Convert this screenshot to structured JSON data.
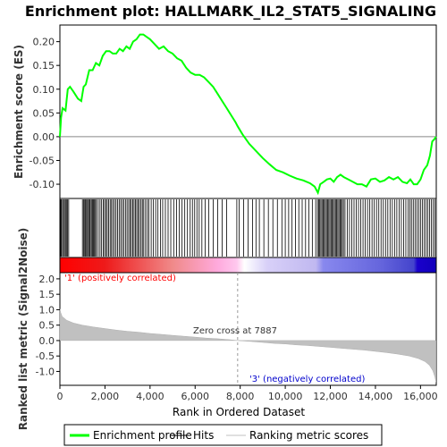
{
  "chart_data": {
    "type": "line",
    "title": "Enrichment plot: HALLMARK_IL2_STAT5_SIGNALING",
    "ylabel_top": "Enrichment score (ES)",
    "ylabel_bottom": "Ranked list metric (Signal2Noise)",
    "xlabel": "Rank in Ordered Dataset",
    "xlim": [
      0,
      16700
    ],
    "x_ticks": [
      0,
      2000,
      4000,
      6000,
      8000,
      10000,
      12000,
      14000,
      16000
    ],
    "x_tick_labels": [
      "0",
      "2,000",
      "4,000",
      "6,000",
      "8,000",
      "10,000",
      "12,000",
      "14,000",
      "16,000"
    ],
    "es_ylim": [
      -0.13,
      0.235
    ],
    "es_ticks": [
      0.2,
      0.15,
      0.1,
      0.05,
      0.0,
      -0.05,
      -0.1
    ],
    "es_tick_labels": [
      "0.20",
      "0.15",
      "0.10",
      "0.05",
      "0.00",
      "-0.05",
      "-0.10"
    ],
    "metric_ylim": [
      -1.45,
      2.2
    ],
    "metric_ticks": [
      2.0,
      1.5,
      1.0,
      0.5,
      0.0,
      -0.5,
      -1.0
    ],
    "metric_tick_labels": [
      "2.0",
      "1.5",
      "1.0",
      "0.5",
      "0.0",
      "-0.5",
      "-1.0"
    ],
    "es_series": {
      "name": "Enrichment profile",
      "color": "#00ff00",
      "points": [
        [
          0,
          0.0
        ],
        [
          50,
          0.04
        ],
        [
          120,
          0.06
        ],
        [
          250,
          0.055
        ],
        [
          350,
          0.1
        ],
        [
          450,
          0.105
        ],
        [
          600,
          0.095
        ],
        [
          800,
          0.08
        ],
        [
          950,
          0.075
        ],
        [
          1050,
          0.105
        ],
        [
          1150,
          0.11
        ],
        [
          1300,
          0.14
        ],
        [
          1450,
          0.14
        ],
        [
          1600,
          0.155
        ],
        [
          1750,
          0.15
        ],
        [
          1900,
          0.17
        ],
        [
          2050,
          0.18
        ],
        [
          2200,
          0.18
        ],
        [
          2350,
          0.175
        ],
        [
          2500,
          0.175
        ],
        [
          2650,
          0.185
        ],
        [
          2800,
          0.18
        ],
        [
          2950,
          0.19
        ],
        [
          3100,
          0.185
        ],
        [
          3250,
          0.2
        ],
        [
          3400,
          0.205
        ],
        [
          3550,
          0.215
        ],
        [
          3700,
          0.215
        ],
        [
          3850,
          0.21
        ],
        [
          4000,
          0.205
        ],
        [
          4200,
          0.195
        ],
        [
          4400,
          0.185
        ],
        [
          4600,
          0.19
        ],
        [
          4800,
          0.18
        ],
        [
          5000,
          0.175
        ],
        [
          5200,
          0.165
        ],
        [
          5400,
          0.16
        ],
        [
          5600,
          0.145
        ],
        [
          5800,
          0.135
        ],
        [
          6000,
          0.13
        ],
        [
          6200,
          0.13
        ],
        [
          6400,
          0.125
        ],
        [
          6600,
          0.115
        ],
        [
          6800,
          0.105
        ],
        [
          7000,
          0.09
        ],
        [
          7200,
          0.075
        ],
        [
          7400,
          0.06
        ],
        [
          7600,
          0.045
        ],
        [
          7800,
          0.03
        ],
        [
          7887,
          0.022
        ],
        [
          8100,
          0.005
        ],
        [
          8400,
          -0.015
        ],
        [
          8700,
          -0.03
        ],
        [
          9000,
          -0.045
        ],
        [
          9300,
          -0.058
        ],
        [
          9600,
          -0.07
        ],
        [
          9900,
          -0.075
        ],
        [
          10200,
          -0.082
        ],
        [
          10500,
          -0.088
        ],
        [
          10800,
          -0.092
        ],
        [
          11100,
          -0.098
        ],
        [
          11300,
          -0.105
        ],
        [
          11450,
          -0.118
        ],
        [
          11550,
          -0.1
        ],
        [
          11700,
          -0.095
        ],
        [
          11850,
          -0.09
        ],
        [
          12000,
          -0.088
        ],
        [
          12150,
          -0.095
        ],
        [
          12300,
          -0.085
        ],
        [
          12450,
          -0.08
        ],
        [
          12600,
          -0.085
        ],
        [
          12800,
          -0.09
        ],
        [
          13000,
          -0.095
        ],
        [
          13200,
          -0.1
        ],
        [
          13400,
          -0.1
        ],
        [
          13600,
          -0.105
        ],
        [
          13800,
          -0.09
        ],
        [
          14000,
          -0.088
        ],
        [
          14200,
          -0.095
        ],
        [
          14400,
          -0.092
        ],
        [
          14600,
          -0.085
        ],
        [
          14800,
          -0.09
        ],
        [
          15000,
          -0.085
        ],
        [
          15200,
          -0.095
        ],
        [
          15400,
          -0.098
        ],
        [
          15550,
          -0.09
        ],
        [
          15700,
          -0.1
        ],
        [
          15850,
          -0.1
        ],
        [
          16000,
          -0.09
        ],
        [
          16150,
          -0.07
        ],
        [
          16300,
          -0.06
        ],
        [
          16420,
          -0.04
        ],
        [
          16520,
          -0.01
        ],
        [
          16620,
          -0.005
        ],
        [
          16690,
          0.0
        ]
      ]
    },
    "hits": [
      30,
      60,
      110,
      160,
      200,
      250,
      290,
      340,
      390,
      1000,
      1050,
      1100,
      1130,
      1180,
      1220,
      1270,
      1310,
      1350,
      1400,
      1450,
      1490,
      1530,
      1580,
      1620,
      1700,
      1780,
      1850,
      1920,
      1980,
      2040,
      2100,
      2160,
      2230,
      2290,
      2350,
      2420,
      2490,
      2560,
      2630,
      2700,
      2770,
      2840,
      2910,
      2980,
      3050,
      3110,
      3170,
      3230,
      3290,
      3350,
      3410,
      3470,
      3530,
      3600,
      3660,
      3720,
      3800,
      3880,
      3950,
      4050,
      4150,
      4250,
      4350,
      4460,
      4560,
      4680,
      4800,
      4920,
      5050,
      5180,
      5300,
      5420,
      5540,
      5660,
      5780,
      5880,
      5980,
      6080,
      6180,
      6300,
      6450,
      6600,
      6800,
      7000,
      7200,
      7400,
      7850,
      7950,
      8150,
      8350,
      8550,
      8700,
      8850,
      9050,
      9250,
      9450,
      9650,
      9850,
      10000,
      10150,
      10300,
      10450,
      10600,
      10750,
      10900,
      11050,
      11200,
      11350,
      11430,
      11480,
      11530,
      11580,
      11630,
      11680,
      11730,
      11780,
      11830,
      11880,
      11930,
      11980,
      12030,
      12080,
      12130,
      12180,
      12230,
      12280,
      12330,
      12380,
      12430,
      12480,
      12530,
      12580,
      12650,
      12750,
      12850,
      12950,
      13050,
      13150,
      13250,
      13350,
      13450,
      13550,
      13650,
      13750,
      13850,
      13950,
      14050,
      14150,
      14250,
      14350,
      14450,
      14550,
      14650,
      14750,
      14850,
      14950,
      15050,
      15150,
      15250,
      15350,
      15450,
      15530,
      15600,
      15680,
      15760,
      15840,
      15920,
      16000,
      16080,
      16160,
      16240,
      16320,
      16400,
      16480,
      16560,
      16640
    ],
    "metric_curve": [
      [
        0,
        1.02
      ],
      [
        30,
        0.92
      ],
      [
        100,
        0.78
      ],
      [
        300,
        0.66
      ],
      [
        600,
        0.57
      ],
      [
        1000,
        0.5
      ],
      [
        1500,
        0.44
      ],
      [
        2000,
        0.39
      ],
      [
        2500,
        0.34
      ],
      [
        3000,
        0.3
      ],
      [
        3500,
        0.27
      ],
      [
        4000,
        0.23
      ],
      [
        4500,
        0.2
      ],
      [
        5000,
        0.17
      ],
      [
        5500,
        0.14
      ],
      [
        6000,
        0.11
      ],
      [
        6500,
        0.08
      ],
      [
        7000,
        0.06
      ],
      [
        7500,
        0.03
      ],
      [
        7887,
        0.0
      ],
      [
        8500,
        -0.03
      ],
      [
        9000,
        -0.06
      ],
      [
        9500,
        -0.09
      ],
      [
        10000,
        -0.11
      ],
      [
        10500,
        -0.14
      ],
      [
        11000,
        -0.16
      ],
      [
        11500,
        -0.19
      ],
      [
        12000,
        -0.22
      ],
      [
        12500,
        -0.25
      ],
      [
        13000,
        -0.28
      ],
      [
        13500,
        -0.31
      ],
      [
        14000,
        -0.35
      ],
      [
        14500,
        -0.39
      ],
      [
        15000,
        -0.44
      ],
      [
        15500,
        -0.5
      ],
      [
        15900,
        -0.58
      ],
      [
        16200,
        -0.68
      ],
      [
        16400,
        -0.8
      ],
      [
        16550,
        -0.98
      ],
      [
        16640,
        -1.18
      ],
      [
        16690,
        -1.35
      ]
    ],
    "annotations": {
      "positive": "'1' (positively correlated)",
      "negative": "'3' (negatively correlated)",
      "zero_cross": "Zero cross at 7887",
      "zero_cross_x": 7887
    },
    "heatmap_stops": [
      [
        0,
        "#ff0000"
      ],
      [
        0.12,
        "#ee1a1a"
      ],
      [
        0.3,
        "#f08a8a"
      ],
      [
        0.42,
        "#ffaadd"
      ],
      [
        0.47,
        "#ffc8ee"
      ],
      [
        0.49,
        "#ffffff"
      ],
      [
        0.55,
        "#d8d0f8"
      ],
      [
        0.68,
        "#c0b8f0"
      ],
      [
        0.7,
        "#8888ee"
      ],
      [
        0.85,
        "#6666dd"
      ],
      [
        0.94,
        "#4444cc"
      ],
      [
        0.95,
        "#1a00cc"
      ],
      [
        1.0,
        "#1100bb"
      ]
    ],
    "legend": {
      "placement": "bottom",
      "items": [
        {
          "label": "Enrichment profile",
          "color": "#00ff00",
          "kind": "thick-line"
        },
        {
          "label": "Hits",
          "color": "#000000",
          "kind": "line"
        },
        {
          "label": "Ranking metric scores",
          "color": "#c0c0c0",
          "kind": "line"
        }
      ]
    }
  }
}
